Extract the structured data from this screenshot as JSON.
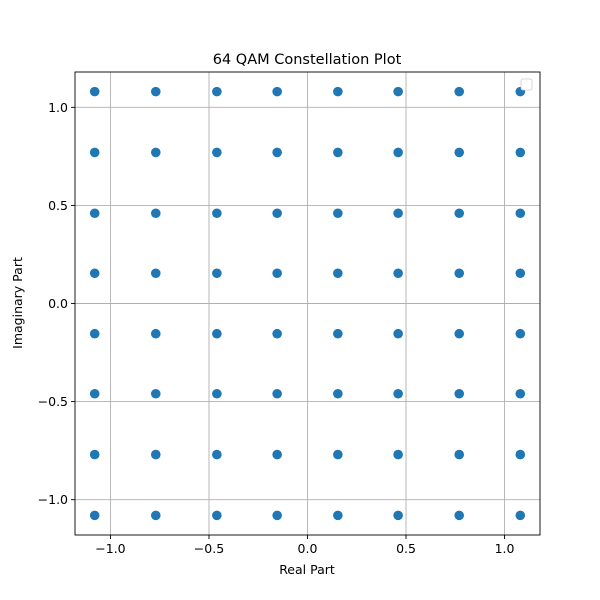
{
  "chart_data": {
    "type": "scatter",
    "title": "64 QAM Constellation Plot",
    "xlabel": "Real Part",
    "ylabel": "Imaginary Part",
    "xlim": [
      -1.18,
      1.18
    ],
    "ylim": [
      -1.18,
      1.18
    ],
    "xticks": [
      -1.0,
      -0.5,
      0.0,
      0.5,
      1.0
    ],
    "yticks": [
      -1.0,
      -0.5,
      0.0,
      0.5,
      1.0
    ],
    "xtick_labels": [
      "−1.0",
      "−0.5",
      "0.0",
      "0.5",
      "1.0"
    ],
    "ytick_labels": [
      "−1.0",
      "−0.5",
      "0.0",
      "0.5",
      "1.0"
    ],
    "grid": true,
    "legend": {
      "placement": "top-right",
      "entries": []
    },
    "levels": [
      -1.08,
      -0.77,
      -0.46,
      -0.154,
      0.154,
      0.46,
      0.77,
      1.08
    ],
    "series": [
      {
        "color": "#1f77b4",
        "points": "all combinations of levels (real) x levels (imaginary)"
      }
    ]
  }
}
